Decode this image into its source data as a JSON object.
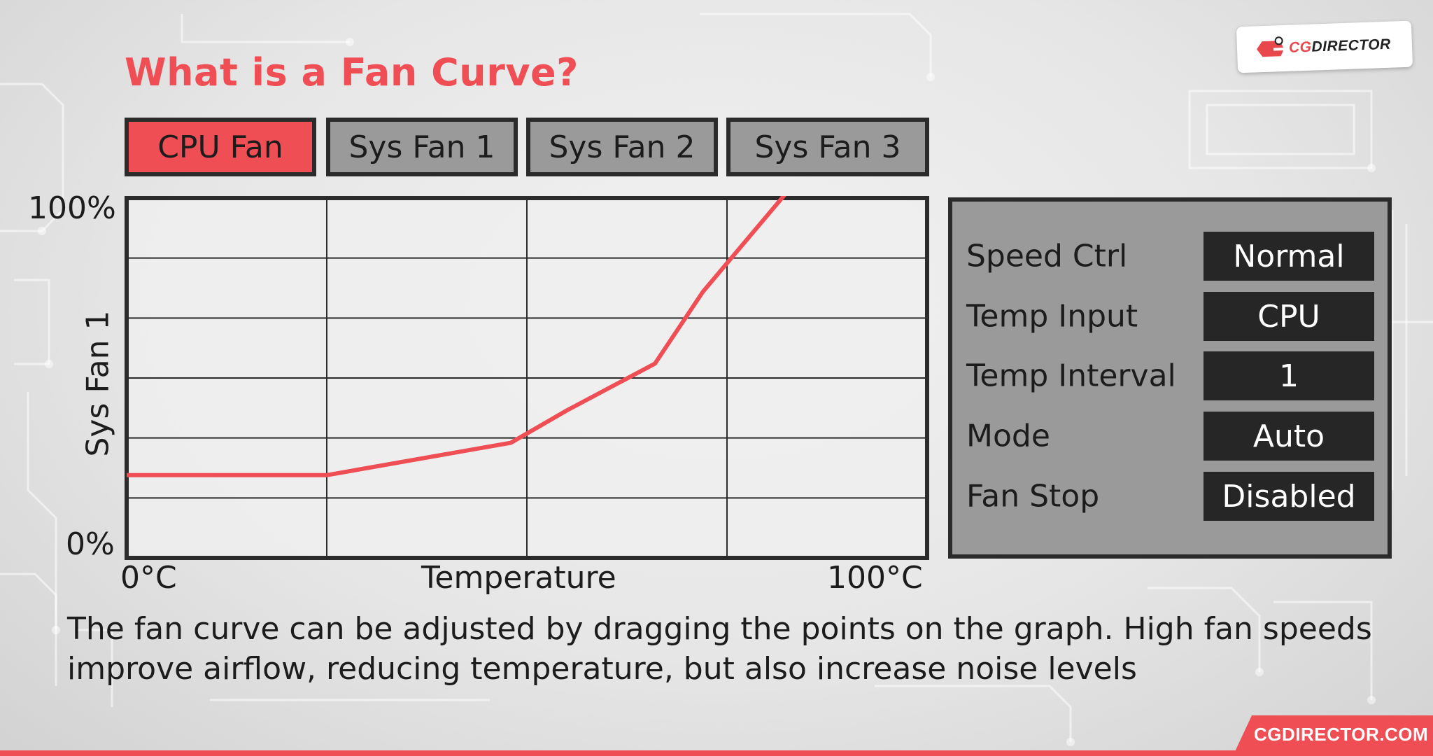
{
  "brand": {
    "logo_text_accent": "CG",
    "logo_text_main": "DIRECTOR",
    "footer_url": "CGDIRECTOR.COM",
    "accent_color": "#ef4e55"
  },
  "title": "What is a Fan Curve?",
  "tabs": [
    {
      "label": "CPU Fan",
      "active": true
    },
    {
      "label": "Sys Fan 1",
      "active": false
    },
    {
      "label": "Sys Fan 2",
      "active": false
    },
    {
      "label": "Sys Fan 3",
      "active": false
    }
  ],
  "chart_data": {
    "type": "line",
    "ylabel": "Sys Fan 1",
    "xlabel": "Temperature",
    "x_tick_labels": [
      "0°C",
      "100°C"
    ],
    "y_tick_labels": [
      "0%",
      "100%"
    ],
    "xlim": [
      0,
      100
    ],
    "ylim": [
      0,
      100
    ],
    "grid": true,
    "x": [
      0,
      25,
      48,
      55,
      66,
      72,
      83
    ],
    "values": [
      23,
      23,
      32,
      41,
      54,
      74,
      103
    ],
    "line_color": "#ef4e55"
  },
  "settings": [
    {
      "label": "Speed Ctrl",
      "value": "Normal"
    },
    {
      "label": "Temp Input",
      "value": "CPU"
    },
    {
      "label": "Temp Interval",
      "value": "1"
    },
    {
      "label": "Mode",
      "value": "Auto"
    },
    {
      "label": "Fan Stop",
      "value": "Disabled"
    }
  ],
  "caption": "The fan curve can be adjusted by dragging the points on the graph. High fan speeds improve airflow, reducing temperature, but also increase noise levels"
}
